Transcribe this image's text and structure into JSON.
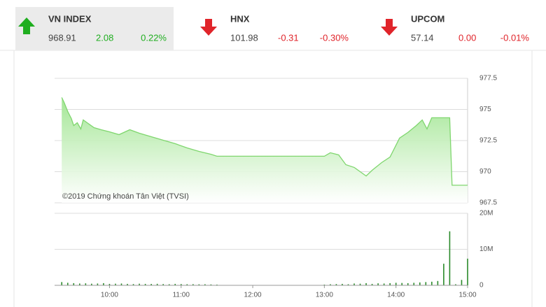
{
  "header": {
    "tickers": [
      {
        "name": "VN INDEX",
        "value": "968.91",
        "change": "2.08",
        "percent": "0.22%",
        "direction": "up",
        "color": "#1fae1f",
        "highlight": true
      },
      {
        "name": "HNX",
        "value": "101.98",
        "change": "-0.31",
        "percent": "-0.30%",
        "direction": "down",
        "color": "#e0242a",
        "highlight": false
      },
      {
        "name": "UPCOM",
        "value": "57.14",
        "change": "0.00",
        "percent": "-0.01%",
        "direction": "down",
        "color": "#e0242a",
        "highlight": false
      }
    ]
  },
  "chart_data": [
    {
      "type": "area",
      "annotation": "©2019 Chứng khoán Tân Việt (TVSI)",
      "color": "#7fd66e",
      "x": [
        560,
        562,
        565,
        568,
        570,
        573,
        576,
        578,
        582,
        587,
        593,
        600,
        608,
        617,
        625,
        635,
        645,
        655,
        665,
        675,
        685,
        690,
        780,
        785,
        792,
        798,
        805,
        810,
        815,
        820,
        828,
        835,
        843,
        850,
        857,
        862,
        866,
        870,
        885,
        887,
        900
      ],
      "values": [
        975.96,
        975.56,
        974.83,
        974.27,
        973.71,
        973.93,
        973.43,
        974.16,
        973.88,
        973.54,
        973.37,
        973.2,
        972.98,
        973.37,
        973.09,
        972.81,
        972.53,
        972.25,
        971.91,
        971.63,
        971.4,
        971.24,
        971.24,
        971.52,
        971.35,
        970.56,
        970.34,
        970.0,
        969.66,
        970.11,
        970.73,
        971.18,
        972.7,
        973.15,
        973.71,
        974.16,
        973.43,
        974.33,
        974.33,
        968.91,
        968.91
      ],
      "xlim": [
        554,
        900
      ],
      "ylim": [
        967.5,
        977.5
      ],
      "yticks": [
        967.5,
        970,
        972.5,
        975,
        977.5
      ],
      "grid": true
    },
    {
      "type": "bar",
      "color": "#2a8a2a",
      "x": [
        560,
        565,
        570,
        575,
        580,
        585,
        590,
        595,
        600,
        605,
        610,
        615,
        620,
        625,
        630,
        635,
        640,
        645,
        650,
        655,
        660,
        665,
        670,
        675,
        680,
        685,
        690,
        780,
        785,
        790,
        795,
        800,
        805,
        810,
        815,
        820,
        825,
        830,
        835,
        840,
        845,
        850,
        855,
        860,
        865,
        870,
        875,
        880,
        885,
        890,
        895,
        900
      ],
      "values": [
        900000,
        700000,
        600000,
        500000,
        550000,
        450000,
        500000,
        600000,
        400000,
        450000,
        500000,
        400000,
        350000,
        450000,
        400000,
        380000,
        420000,
        350000,
        300000,
        400000,
        350000,
        300000,
        320000,
        280000,
        300000,
        250000,
        200000,
        200000,
        300000,
        350000,
        400000,
        300000,
        500000,
        450000,
        600000,
        400000,
        550000,
        500000,
        600000,
        700000,
        650000,
        600000,
        700000,
        800000,
        900000,
        1000000,
        1200000,
        6000000,
        15000000,
        300000,
        1500000,
        7400000
      ],
      "xlim": [
        554,
        900
      ],
      "ylim": [
        0,
        20000000
      ],
      "yticks": [
        0,
        {
          "value": 10000000,
          "label": "10M"
        },
        {
          "value": 20000000,
          "label": "20M"
        }
      ],
      "xticks": [
        {
          "value": 600,
          "label": "10:00"
        },
        {
          "value": 660,
          "label": "11:00"
        },
        {
          "value": 720,
          "label": "12:00"
        },
        {
          "value": 780,
          "label": "13:00"
        },
        {
          "value": 840,
          "label": "14:00"
        },
        {
          "value": 900,
          "label": "15:00"
        }
      ],
      "grid": true
    }
  ]
}
